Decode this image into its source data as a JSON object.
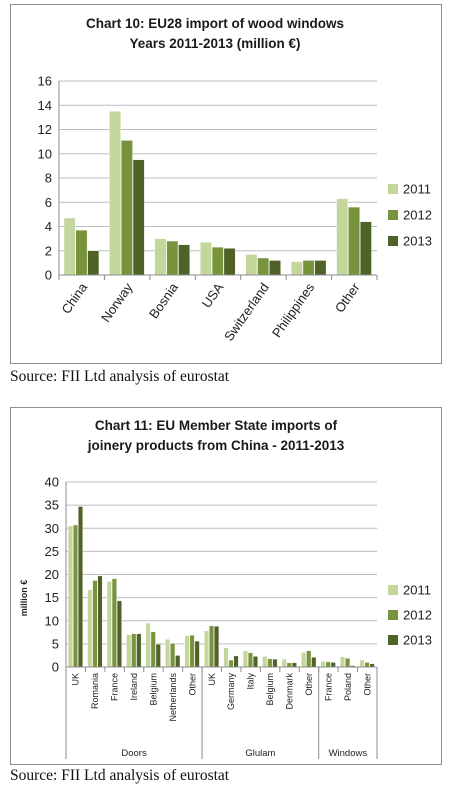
{
  "colors": {
    "2011": "#c3d69b",
    "2012": "#77933c",
    "2013": "#4f6228"
  },
  "chart_data": [
    {
      "type": "bar",
      "title_line1": "Chart 10: EU28 import of wood windows",
      "title_line2": "Years 2011-2013 (million €)",
      "categories": [
        "China",
        "Norway",
        "Bosnia",
        "USA",
        "Switzerland",
        "Philippines",
        "Other"
      ],
      "series": [
        {
          "name": "2011",
          "values": [
            4.7,
            13.5,
            3.0,
            2.7,
            1.7,
            1.1,
            6.3
          ]
        },
        {
          "name": "2012",
          "values": [
            3.7,
            11.1,
            2.8,
            2.3,
            1.4,
            1.2,
            5.6
          ]
        },
        {
          "name": "2013",
          "values": [
            2.0,
            9.5,
            2.5,
            2.2,
            1.2,
            1.2,
            4.4
          ]
        }
      ],
      "ylim": [
        0,
        16
      ],
      "yticks": [
        "0",
        "2",
        "4",
        "6",
        "8",
        "10",
        "12",
        "14",
        "16"
      ],
      "grid": true,
      "legend_position": "right"
    },
    {
      "type": "bar",
      "title_line1": "Chart 11: EU Member State imports of",
      "title_line2": "joinery products from China - 2011-2013",
      "ylabel": "million €",
      "categories": [
        "UK",
        "Romania",
        "France",
        "Ireland",
        "Belgium",
        "Netherlands",
        "Other",
        "UK",
        "Germany",
        "Italy",
        "Belgium",
        "Denmark",
        "Other",
        "France",
        "Poland",
        "Other"
      ],
      "groups": [
        {
          "label": "Doors",
          "count": 7
        },
        {
          "label": "Glulam",
          "count": 6
        },
        {
          "label": "Windows",
          "count": 3
        }
      ],
      "series": [
        {
          "name": "2011",
          "values": [
            30.5,
            16.7,
            18.5,
            7.0,
            9.5,
            6.0,
            6.8,
            7.8,
            4.2,
            3.5,
            2.3,
            1.7,
            3.2,
            1.2,
            2.2,
            1.5
          ]
        },
        {
          "name": "2012",
          "values": [
            30.7,
            18.7,
            19.1,
            7.2,
            7.6,
            5.1,
            6.9,
            8.9,
            1.5,
            3.1,
            1.8,
            0.9,
            3.5,
            1.1,
            1.9,
            1.0
          ]
        },
        {
          "name": "2013",
          "values": [
            34.7,
            19.7,
            14.3,
            7.2,
            4.9,
            2.5,
            5.6,
            8.8,
            2.4,
            2.3,
            1.7,
            0.9,
            2.1,
            1.0,
            0.3,
            0.7
          ]
        }
      ],
      "ylim": [
        0,
        40
      ],
      "yticks": [
        "0",
        "5",
        "10",
        "15",
        "20",
        "25",
        "30",
        "35",
        "40"
      ],
      "grid": true,
      "legend_position": "right"
    }
  ],
  "source1": "Source: FII Ltd analysis of eurostat",
  "source2": "Source: FII Ltd analysis of eurostat"
}
